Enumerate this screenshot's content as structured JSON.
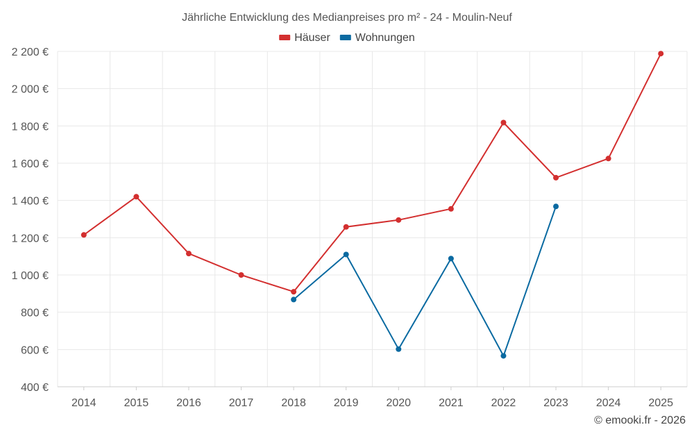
{
  "chart_data": {
    "type": "line",
    "title": "Jährliche Entwicklung des Medianpreises pro m² - 24 - Moulin-Neuf",
    "categories": [
      "2014",
      "2015",
      "2016",
      "2017",
      "2018",
      "2019",
      "2020",
      "2021",
      "2022",
      "2023",
      "2024",
      "2025"
    ],
    "series": [
      {
        "name": "Häuser",
        "color": "#d32f2f",
        "values": [
          1215,
          1420,
          1115,
          1000,
          910,
          1258,
          1295,
          1355,
          1818,
          1522,
          1625,
          2188
        ]
      },
      {
        "name": "Wohnungen",
        "color": "#0a6aa1",
        "values": [
          null,
          null,
          null,
          null,
          868,
          1110,
          602,
          1088,
          566,
          1368,
          null,
          null
        ]
      }
    ],
    "ylim": [
      400,
      2200
    ],
    "yticks": [
      400,
      600,
      800,
      1000,
      1200,
      1400,
      1600,
      1800,
      2000,
      2200
    ],
    "ytick_labels": [
      "400 €",
      "600 €",
      "800 €",
      "1 000 €",
      "1 200 €",
      "1 400 €",
      "1 600 €",
      "1 800 €",
      "2 000 €",
      "2 200 €"
    ],
    "xlabel": "",
    "ylabel": "",
    "grid": true,
    "legend_position": "top-center"
  },
  "credit": "© emooki.fr - 2026"
}
